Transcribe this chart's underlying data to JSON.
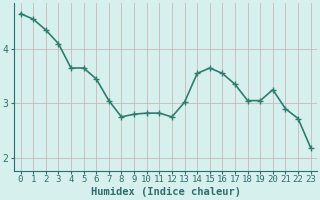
{
  "x": [
    0,
    1,
    2,
    3,
    4,
    5,
    6,
    7,
    8,
    9,
    10,
    11,
    12,
    13,
    14,
    15,
    16,
    17,
    18,
    19,
    20,
    21,
    22,
    23
  ],
  "y": [
    4.65,
    4.55,
    4.35,
    4.1,
    3.65,
    3.65,
    3.45,
    3.05,
    2.75,
    2.8,
    2.82,
    2.82,
    2.75,
    3.02,
    3.55,
    3.65,
    3.55,
    3.35,
    3.05,
    3.05,
    3.25,
    2.9,
    2.72,
    2.18
  ],
  "line_color": "#2e7d6e",
  "marker": "+",
  "marker_size": 4,
  "marker_edge_width": 1.0,
  "xlim": [
    -0.5,
    23.5
  ],
  "ylim": [
    1.75,
    4.85
  ],
  "yticks": [
    2,
    3,
    4
  ],
  "xtick_labels": [
    "0",
    "1",
    "2",
    "3",
    "4",
    "5",
    "6",
    "7",
    "8",
    "9",
    "10",
    "11",
    "12",
    "13",
    "14",
    "15",
    "16",
    "17",
    "18",
    "19",
    "20",
    "21",
    "22",
    "23"
  ],
  "xlabel": "Humidex (Indice chaleur)",
  "xlabel_fontsize": 7.5,
  "background_color": "#d6f0ee",
  "grid_color_h": "#c8b8b8",
  "grid_color_v": "#c8b8b8",
  "tick_color": "#2e6e6e",
  "line_width": 1.2,
  "tick_fontsize": 6.5,
  "ytick_fontsize": 7.0
}
